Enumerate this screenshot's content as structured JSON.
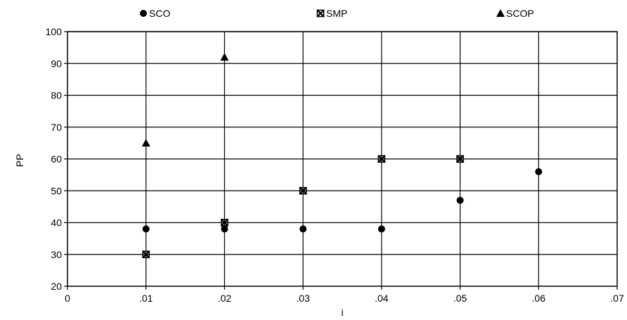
{
  "chart_data": {
    "type": "scatter",
    "title": "",
    "xlabel": "i",
    "ylabel": "PP",
    "xlim": [
      0,
      0.07
    ],
    "ylim": [
      20,
      100
    ],
    "x_ticks": [
      0,
      0.01,
      0.02,
      0.03,
      0.04,
      0.05,
      0.06,
      0.07
    ],
    "x_tick_labels": [
      "0",
      ".01",
      ".02",
      ".03",
      ".04",
      ".05",
      ".06",
      ".07"
    ],
    "y_ticks": [
      20,
      30,
      40,
      50,
      60,
      70,
      80,
      90,
      100
    ],
    "y_tick_labels": [
      "20",
      "30",
      "40",
      "50",
      "60",
      "70",
      "80",
      "90",
      "100"
    ],
    "grid": true,
    "legend_position": "top",
    "series": [
      {
        "name": "SCO",
        "marker": "circle",
        "color": "#000000",
        "points": [
          [
            0.01,
            38
          ],
          [
            0.02,
            38
          ],
          [
            0.03,
            38
          ],
          [
            0.04,
            38
          ],
          [
            0.05,
            47
          ],
          [
            0.06,
            56
          ]
        ]
      },
      {
        "name": "SMP",
        "marker": "x-square",
        "color": "#000000",
        "points": [
          [
            0.01,
            30
          ],
          [
            0.02,
            40
          ],
          [
            0.03,
            50
          ],
          [
            0.04,
            60
          ],
          [
            0.05,
            60
          ]
        ]
      },
      {
        "name": "SCOP",
        "marker": "triangle",
        "color": "#000000",
        "points": [
          [
            0.01,
            65
          ],
          [
            0.02,
            92
          ]
        ]
      }
    ]
  }
}
